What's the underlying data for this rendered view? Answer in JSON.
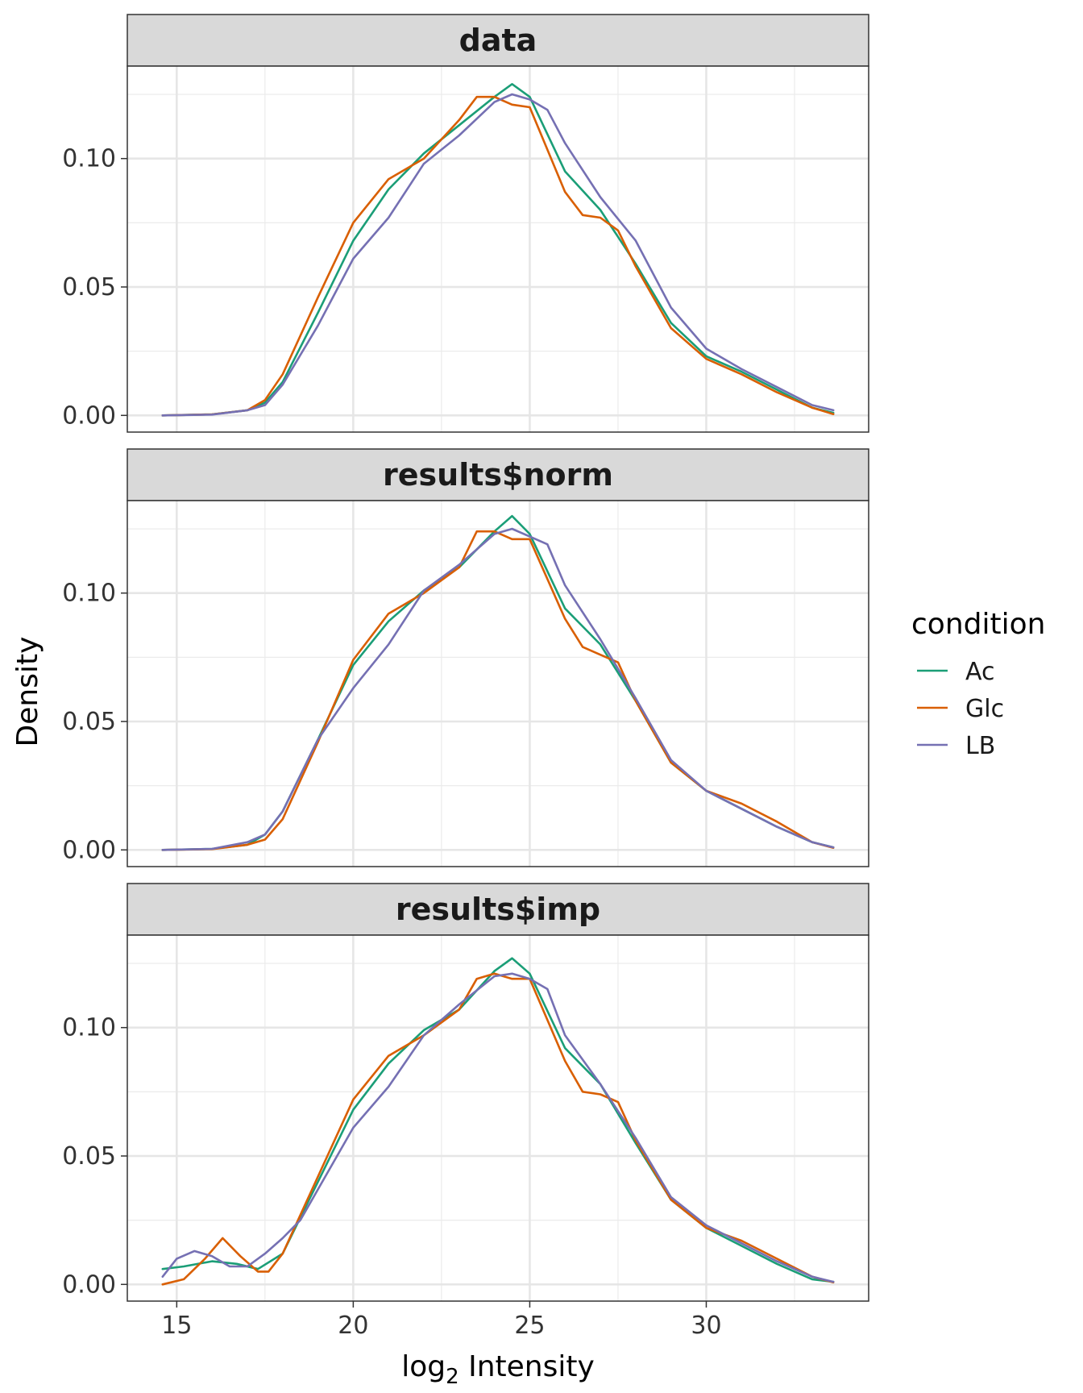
{
  "chart_data": {
    "type": "line",
    "subtype": "density",
    "xlabel_base": "log",
    "xlabel_sub": "2",
    "xlabel_rest": " Intensity",
    "ylabel": "Density",
    "xlim": [
      13.6,
      34.6
    ],
    "ylim": [
      -0.0065,
      0.136
    ],
    "xticks": [
      15,
      20,
      25,
      30
    ],
    "xtick_labels": [
      "15",
      "20",
      "25",
      "30"
    ],
    "yticks": [
      0.0,
      0.05,
      0.1
    ],
    "ytick_labels": [
      "0.00",
      "0.05",
      "0.10"
    ],
    "grid": true,
    "legend": {
      "title": "condition",
      "position": "right",
      "entries": [
        {
          "name": "Ac",
          "color": "#1B9E77"
        },
        {
          "name": "Glc",
          "color": "#D95F02"
        },
        {
          "name": "LB",
          "color": "#7570B3"
        }
      ]
    },
    "panels": [
      {
        "strip": "data",
        "series": [
          {
            "name": "Ac",
            "color": "#1B9E77",
            "x": [
              14.6,
              16.0,
              17.0,
              17.5,
              18.0,
              19.0,
              20.0,
              21.0,
              22.0,
              23.0,
              24.0,
              24.5,
              25.0,
              26.0,
              27.0,
              28.0,
              29.0,
              30.0,
              31.0,
              32.0,
              33.0,
              33.6
            ],
            "y": [
              0.0,
              0.0004,
              0.002,
              0.005,
              0.013,
              0.04,
              0.068,
              0.088,
              0.102,
              0.113,
              0.124,
              0.129,
              0.124,
              0.095,
              0.08,
              0.059,
              0.036,
              0.023,
              0.017,
              0.01,
              0.003,
              0.001
            ]
          },
          {
            "name": "Glc",
            "color": "#D95F02",
            "x": [
              14.6,
              16.0,
              17.0,
              17.5,
              18.0,
              19.0,
              20.0,
              21.0,
              22.0,
              23.0,
              23.5,
              24.0,
              24.5,
              25.0,
              26.0,
              26.5,
              27.0,
              27.5,
              28.0,
              29.0,
              30.0,
              31.0,
              32.0,
              33.0,
              33.6
            ],
            "y": [
              0.0,
              0.0004,
              0.002,
              0.006,
              0.016,
              0.046,
              0.075,
              0.092,
              0.1,
              0.115,
              0.124,
              0.124,
              0.121,
              0.12,
              0.087,
              0.078,
              0.077,
              0.072,
              0.058,
              0.034,
              0.022,
              0.016,
              0.009,
              0.003,
              0.0005
            ]
          },
          {
            "name": "LB",
            "color": "#7570B3",
            "x": [
              14.6,
              16.0,
              17.0,
              17.5,
              18.0,
              19.0,
              20.0,
              21.0,
              22.0,
              23.0,
              24.0,
              24.5,
              25.0,
              25.5,
              26.0,
              27.0,
              28.0,
              29.0,
              30.0,
              31.0,
              32.0,
              33.0,
              33.6
            ],
            "y": [
              0.0,
              0.0003,
              0.002,
              0.004,
              0.012,
              0.035,
              0.061,
              0.077,
              0.098,
              0.109,
              0.122,
              0.125,
              0.123,
              0.119,
              0.106,
              0.085,
              0.068,
              0.042,
              0.026,
              0.018,
              0.011,
              0.004,
              0.002
            ]
          }
        ]
      },
      {
        "strip": "results$norm",
        "series": [
          {
            "name": "Ac",
            "color": "#1B9E77",
            "x": [
              14.6,
              16.0,
              17.0,
              17.5,
              18.0,
              19.0,
              20.0,
              21.0,
              22.0,
              23.0,
              24.0,
              24.5,
              25.0,
              26.0,
              27.0,
              28.0,
              29.0,
              30.0,
              31.0,
              32.0,
              33.0,
              33.6
            ],
            "y": [
              0.0,
              0.0004,
              0.002,
              0.006,
              0.015,
              0.043,
              0.072,
              0.089,
              0.101,
              0.11,
              0.124,
              0.13,
              0.123,
              0.094,
              0.08,
              0.058,
              0.034,
              0.023,
              0.016,
              0.009,
              0.003,
              0.001
            ]
          },
          {
            "name": "Glc",
            "color": "#D95F02",
            "x": [
              14.6,
              16.0,
              17.0,
              17.5,
              18.0,
              19.0,
              20.0,
              21.0,
              22.0,
              23.0,
              23.5,
              24.0,
              24.5,
              25.0,
              26.0,
              26.5,
              27.0,
              27.5,
              28.0,
              29.0,
              30.0,
              31.0,
              32.0,
              33.0,
              33.6
            ],
            "y": [
              0.0,
              0.0003,
              0.002,
              0.004,
              0.012,
              0.042,
              0.074,
              0.092,
              0.1,
              0.11,
              0.124,
              0.124,
              0.121,
              0.121,
              0.09,
              0.079,
              0.076,
              0.073,
              0.058,
              0.034,
              0.023,
              0.018,
              0.011,
              0.003,
              0.0008
            ]
          },
          {
            "name": "LB",
            "color": "#7570B3",
            "x": [
              14.6,
              16.0,
              17.0,
              17.5,
              18.0,
              19.0,
              20.0,
              21.0,
              22.0,
              23.0,
              24.0,
              24.5,
              25.0,
              25.5,
              26.0,
              27.0,
              28.0,
              29.0,
              30.0,
              31.0,
              32.0,
              33.0,
              33.6
            ],
            "y": [
              0.0,
              0.0004,
              0.003,
              0.006,
              0.015,
              0.043,
              0.063,
              0.08,
              0.101,
              0.111,
              0.123,
              0.125,
              0.122,
              0.119,
              0.103,
              0.082,
              0.059,
              0.035,
              0.023,
              0.016,
              0.009,
              0.003,
              0.001
            ]
          }
        ]
      },
      {
        "strip": "results$imp",
        "series": [
          {
            "name": "Ac",
            "color": "#1B9E77",
            "x": [
              14.6,
              15.2,
              16.0,
              16.7,
              17.3,
              18.0,
              19.0,
              20.0,
              21.0,
              22.0,
              23.0,
              24.0,
              24.5,
              25.0,
              26.0,
              27.0,
              28.0,
              29.0,
              30.0,
              31.0,
              32.0,
              33.0,
              33.6
            ],
            "y": [
              0.006,
              0.007,
              0.009,
              0.008,
              0.006,
              0.012,
              0.04,
              0.068,
              0.086,
              0.099,
              0.107,
              0.122,
              0.127,
              0.121,
              0.092,
              0.078,
              0.055,
              0.033,
              0.022,
              0.015,
              0.008,
              0.002,
              0.001
            ]
          },
          {
            "name": "Glc",
            "color": "#D95F02",
            "x": [
              14.6,
              15.2,
              15.8,
              16.3,
              16.8,
              17.3,
              17.6,
              18.0,
              19.0,
              20.0,
              21.0,
              22.0,
              23.0,
              23.5,
              24.0,
              24.5,
              25.0,
              26.0,
              26.5,
              27.0,
              27.5,
              28.0,
              29.0,
              30.0,
              31.0,
              32.0,
              33.0,
              33.6
            ],
            "y": [
              0.0,
              0.002,
              0.01,
              0.018,
              0.011,
              0.005,
              0.005,
              0.012,
              0.042,
              0.072,
              0.089,
              0.097,
              0.107,
              0.119,
              0.121,
              0.119,
              0.119,
              0.087,
              0.075,
              0.074,
              0.071,
              0.056,
              0.033,
              0.022,
              0.017,
              0.01,
              0.003,
              0.0008
            ]
          },
          {
            "name": "LB",
            "color": "#7570B3",
            "x": [
              14.6,
              15.0,
              15.5,
              16.0,
              16.5,
              17.0,
              17.5,
              18.0,
              18.5,
              19.0,
              20.0,
              21.0,
              22.0,
              23.0,
              24.0,
              24.5,
              25.0,
              25.5,
              26.0,
              27.0,
              28.0,
              29.0,
              30.0,
              31.0,
              32.0,
              33.0,
              33.6
            ],
            "y": [
              0.003,
              0.01,
              0.013,
              0.011,
              0.007,
              0.007,
              0.012,
              0.018,
              0.025,
              0.037,
              0.061,
              0.077,
              0.097,
              0.109,
              0.12,
              0.121,
              0.119,
              0.115,
              0.097,
              0.078,
              0.057,
              0.034,
              0.023,
              0.016,
              0.009,
              0.003,
              0.001
            ]
          }
        ]
      }
    ]
  }
}
